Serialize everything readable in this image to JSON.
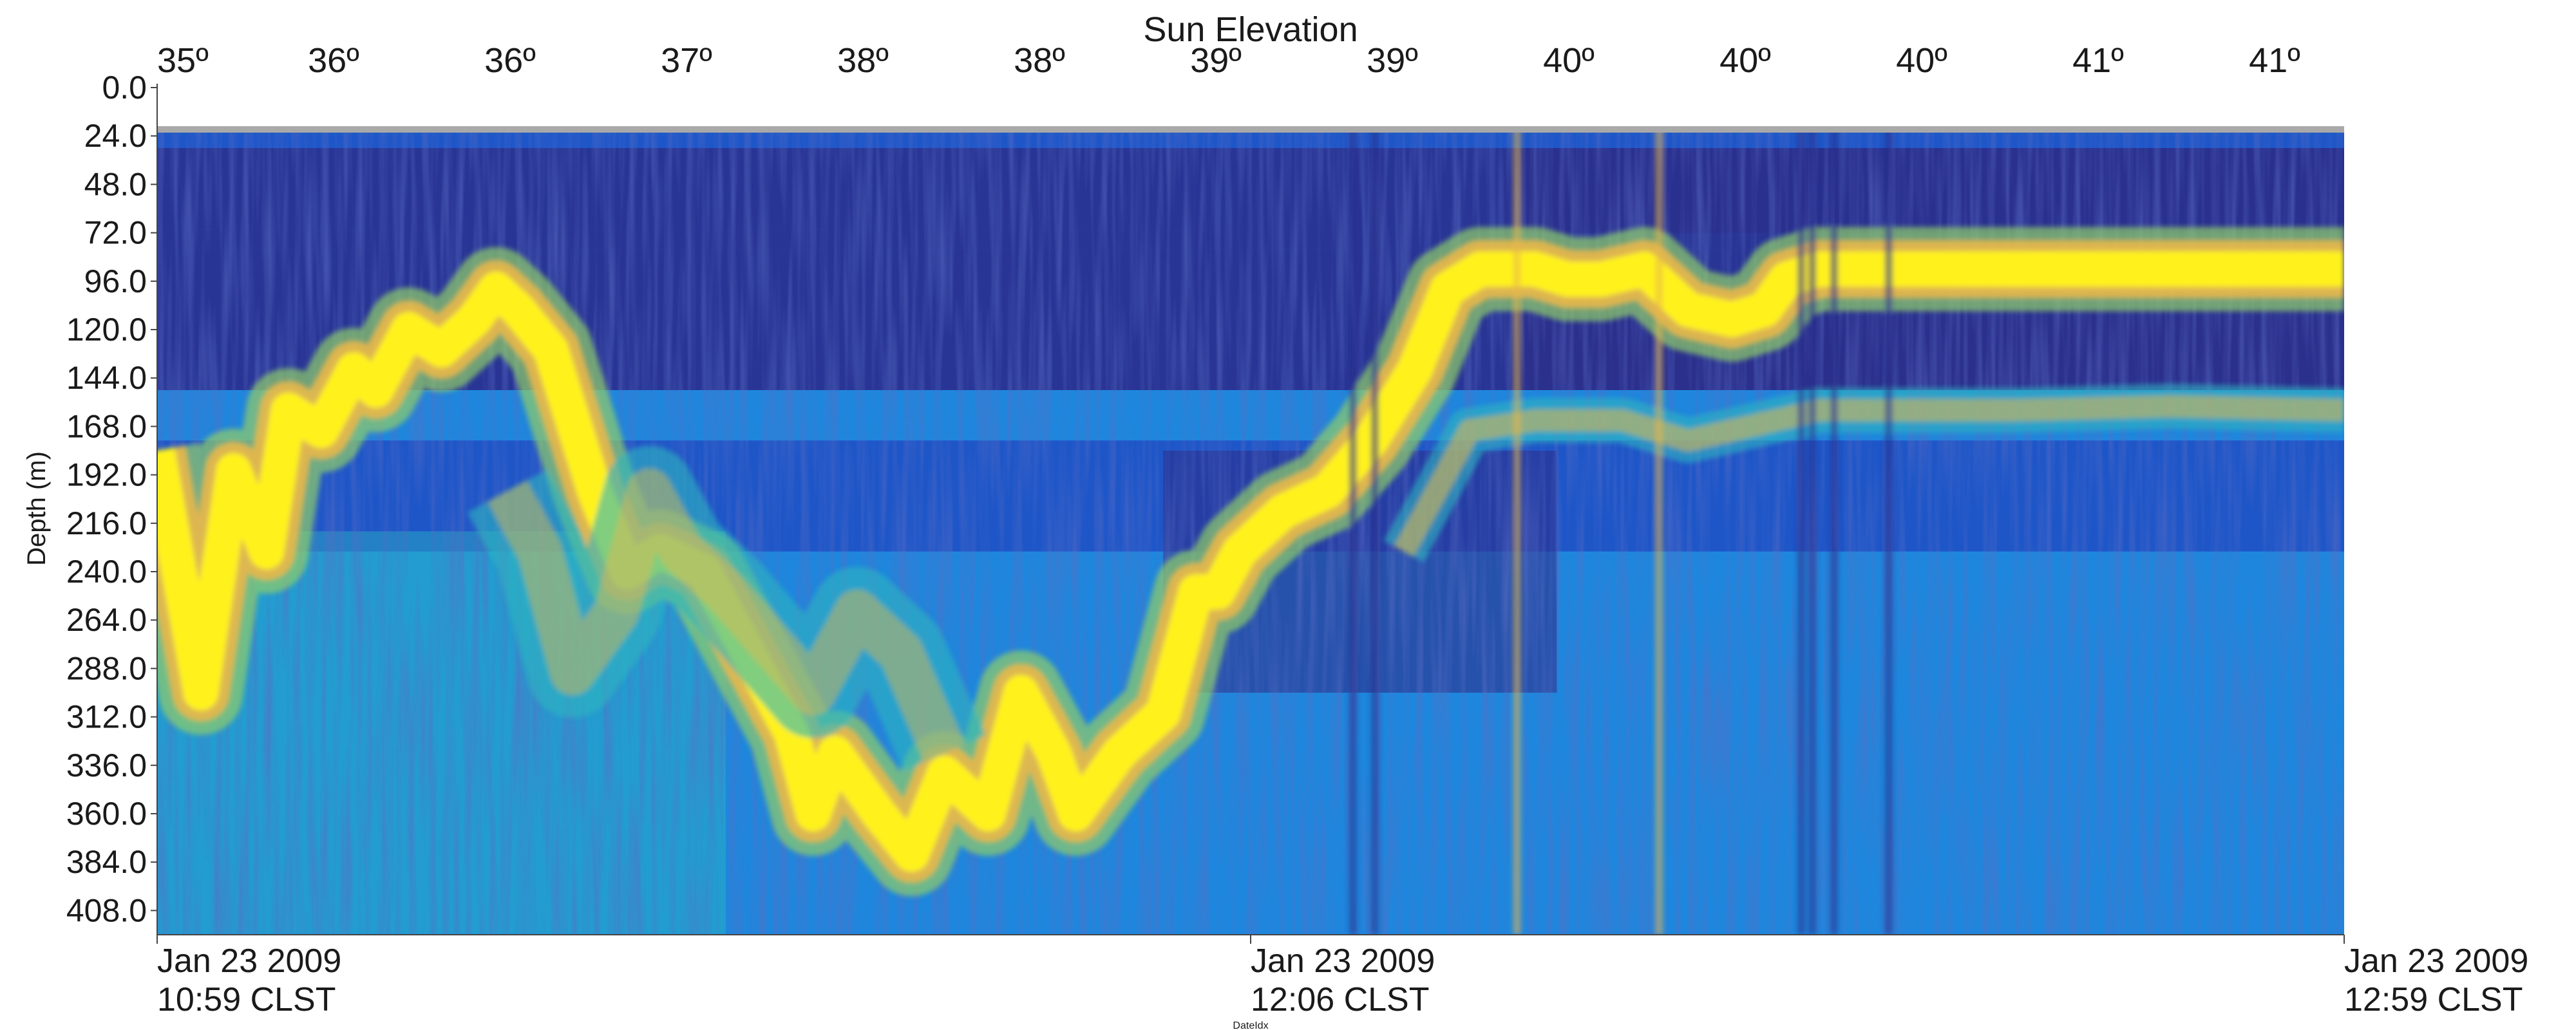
{
  "chart_data": {
    "type": "heatmap",
    "title": "Sun Elevation",
    "ylabel": "Depth (m)",
    "xlabel": "DateIdx",
    "top_axis_label": "Sun Elevation",
    "top_axis_ticks": [
      "35º",
      "36º",
      "36º",
      "37º",
      "38º",
      "38º",
      "39º",
      "39º",
      "40º",
      "40º",
      "40º",
      "41º",
      "41º"
    ],
    "y_ticks": [
      "0.0",
      "24.0",
      "48.0",
      "72.0",
      "96.0",
      "120.0",
      "144.0",
      "168.0",
      "192.0",
      "216.0",
      "240.0",
      "264.0",
      "288.0",
      "312.0",
      "336.0",
      "360.0",
      "384.0",
      "408.0"
    ],
    "ylim": [
      0,
      420
    ],
    "y_inverted": true,
    "x_ticks": [
      {
        "date": "Jan 23 2009",
        "time": "10:59 CLST"
      },
      {
        "date": "Jan 23 2009",
        "time": "12:06 CLST"
      },
      {
        "date": "Jan 23 2009",
        "time": "12:59 CLST"
      }
    ],
    "colormap": [
      "#2b2f8c",
      "#1e56c8",
      "#1f8fe0",
      "#2bb5c0",
      "#8fcf6a",
      "#e9b84a",
      "#ffea2a",
      "#fff21c"
    ],
    "no_data_color": "#a9a9a9",
    "no_data_depth_range": [
      0,
      24
    ],
    "layers": [
      {
        "name": "layer-a",
        "points": [
          [
            0,
            180
          ],
          [
            0.02,
            300
          ],
          [
            0.035,
            190
          ],
          [
            0.05,
            230
          ],
          [
            0.06,
            160
          ],
          [
            0.075,
            170
          ],
          [
            0.09,
            140
          ],
          [
            0.1,
            150
          ],
          [
            0.115,
            120
          ],
          [
            0.13,
            130
          ],
          [
            0.145,
            115
          ],
          [
            0.155,
            100
          ],
          [
            0.165,
            110
          ],
          [
            0.18,
            130
          ],
          [
            0.2,
            200
          ],
          [
            0.215,
            240
          ],
          [
            0.23,
            230
          ],
          [
            0.25,
            240
          ],
          [
            0.27,
            280
          ],
          [
            0.29,
            320
          ],
          [
            0.3,
            360
          ],
          [
            0.31,
            330
          ],
          [
            0.33,
            360
          ],
          [
            0.345,
            380
          ],
          [
            0.36,
            340
          ],
          [
            0.38,
            360
          ],
          [
            0.395,
            300
          ],
          [
            0.41,
            330
          ],
          [
            0.42,
            360
          ],
          [
            0.44,
            330
          ],
          [
            0.46,
            310
          ],
          [
            0.475,
            250
          ],
          [
            0.485,
            250
          ],
          [
            0.495,
            230
          ],
          [
            0.515,
            210
          ],
          [
            0.535,
            200
          ],
          [
            0.555,
            175
          ],
          [
            0.575,
            140
          ],
          [
            0.59,
            100
          ],
          [
            0.605,
            90
          ],
          [
            0.63,
            90
          ],
          [
            0.645,
            95
          ],
          [
            0.66,
            95
          ],
          [
            0.68,
            90
          ],
          [
            0.7,
            110
          ],
          [
            0.72,
            115
          ],
          [
            0.735,
            110
          ],
          [
            0.745,
            95
          ],
          [
            0.76,
            90
          ],
          [
            0.8,
            90
          ],
          [
            1,
            90
          ]
        ],
        "thickness": 22,
        "strength": 1.0
      },
      {
        "name": "layer-b",
        "points": [
          [
            0.16,
            200
          ],
          [
            0.175,
            230
          ],
          [
            0.19,
            290
          ],
          [
            0.21,
            260
          ],
          [
            0.225,
            200
          ],
          [
            0.24,
            230
          ],
          [
            0.26,
            250
          ],
          [
            0.3,
            300
          ],
          [
            0.32,
            260
          ],
          [
            0.34,
            280
          ],
          [
            0.36,
            330
          ]
        ],
        "thickness": 28,
        "strength": 0.45
      },
      {
        "name": "layer-c",
        "points": [
          [
            0.57,
            230
          ],
          [
            0.585,
            200
          ],
          [
            0.6,
            170
          ],
          [
            0.63,
            165
          ],
          [
            0.67,
            165
          ],
          [
            0.7,
            175
          ],
          [
            0.72,
            170
          ],
          [
            0.76,
            160
          ],
          [
            0.85,
            160
          ],
          [
            0.92,
            158
          ],
          [
            1,
            160
          ]
        ],
        "thickness": 14,
        "strength": 0.55
      }
    ]
  }
}
